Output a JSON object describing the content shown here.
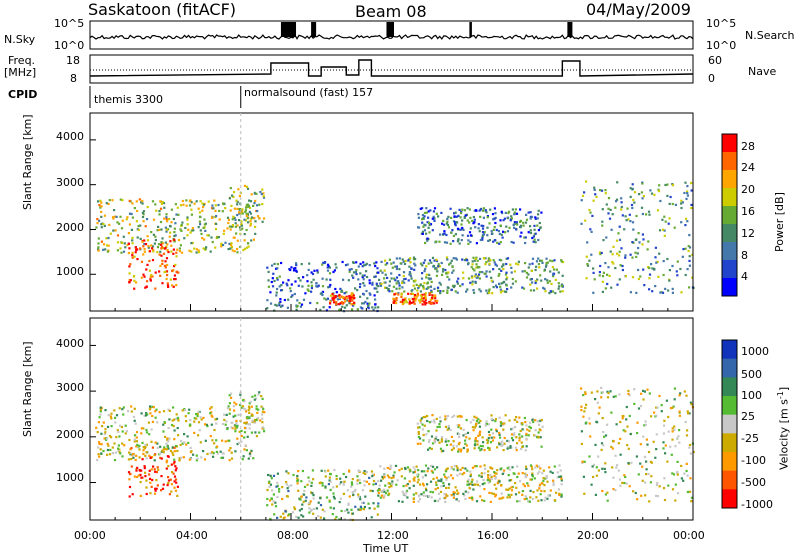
{
  "header": {
    "station": "Saskatoon (fitACF)",
    "beam": "Beam 08",
    "date": "04/May/2009"
  },
  "panels": {
    "nsky": {
      "left_label": "N.Sky",
      "right_label": "N.Search",
      "ticks_left": [
        "10^5",
        "10^0"
      ],
      "ticks_right": [
        "10^5",
        "10^0"
      ]
    },
    "freq": {
      "left_label_1": "Freq.",
      "left_label_2": "[MHz]",
      "ticks_left": [
        "18",
        "8"
      ],
      "ticks_right": [
        "60",
        "0"
      ],
      "right_label": "Nave"
    },
    "cpid": {
      "label": "CPID",
      "segments": [
        {
          "name": "themis 3300",
          "start_hour": 0
        },
        {
          "name": "normalsound (fast) 157",
          "start_hour": 6
        }
      ]
    }
  },
  "chart_data": [
    {
      "type": "heatmap",
      "quantity": "Power",
      "ylabel": "Slant Range [km]",
      "ylim": [
        180,
        4600
      ],
      "yticks": [
        "1000",
        "2000",
        "3000",
        "4000"
      ],
      "xlim_hours": [
        0,
        24
      ],
      "colorbar_label": "Power [dB]",
      "colorbar_ticks": [
        "28",
        "24",
        "20",
        "16",
        "12",
        "8",
        "4"
      ],
      "colorbar_colors": [
        "#ff0000",
        "#ff6600",
        "#ffa500",
        "#cccc00",
        "#66aa33",
        "#448866",
        "#4477aa",
        "#2244cc",
        "#0000ff"
      ],
      "regions": [
        {
          "t0": 0.2,
          "t1": 6.6,
          "r0": 1500,
          "r1": 2700,
          "level": 0.55
        },
        {
          "t0": 1.5,
          "t1": 3.5,
          "r0": 700,
          "r1": 1800,
          "level": 0.85
        },
        {
          "t0": 5.5,
          "t1": 6.9,
          "r0": 2000,
          "r1": 3000,
          "level": 0.5
        },
        {
          "t0": 7.0,
          "t1": 11.5,
          "r0": 200,
          "r1": 1300,
          "level": 0.25
        },
        {
          "t0": 9.5,
          "t1": 10.5,
          "r0": 350,
          "r1": 600,
          "level": 0.85
        },
        {
          "t0": 11.5,
          "t1": 18.8,
          "r0": 600,
          "r1": 1400,
          "level": 0.4
        },
        {
          "t0": 12.0,
          "t1": 13.8,
          "r0": 350,
          "r1": 600,
          "level": 0.85
        },
        {
          "t0": 13.0,
          "t1": 18.0,
          "r0": 1700,
          "r1": 2500,
          "level": 0.3
        },
        {
          "t0": 19.5,
          "t1": 24.0,
          "r0": 600,
          "r1": 3100,
          "level": 0.4
        }
      ]
    },
    {
      "type": "heatmap",
      "quantity": "Velocity",
      "ylabel": "Slant Range [km]",
      "ylim": [
        180,
        4600
      ],
      "yticks": [
        "1000",
        "2000",
        "3000",
        "4000"
      ],
      "xlabel": "Time UT",
      "xticks": [
        "00:00",
        "04:00",
        "08:00",
        "12:00",
        "16:00",
        "20:00",
        "00:00"
      ],
      "xlim_hours": [
        0,
        24
      ],
      "colorbar_label": "Velocity [m s^-1]",
      "colorbar_ticks": [
        "1000",
        "500",
        "100",
        "25",
        "-25",
        "-100",
        "-500",
        "-1000"
      ],
      "colorbar_colors": [
        "#1133bb",
        "#3366aa",
        "#338855",
        "#55bb33",
        "#c8c8c8",
        "#ccaa00",
        "#ff9900",
        "#ff5500",
        "#ff0000"
      ],
      "regions": [
        {
          "t0": 0.2,
          "t1": 6.6,
          "r0": 1500,
          "r1": 2700,
          "level": 0.5
        },
        {
          "t0": 1.5,
          "t1": 3.5,
          "r0": 700,
          "r1": 1800,
          "level": 0.2
        },
        {
          "t0": 5.5,
          "t1": 6.9,
          "r0": 2000,
          "r1": 3000,
          "level": 0.5
        },
        {
          "t0": 7.0,
          "t1": 11.5,
          "r0": 200,
          "r1": 1300,
          "level": 0.55
        },
        {
          "t0": 11.5,
          "t1": 18.8,
          "r0": 600,
          "r1": 1400,
          "level": 0.5
        },
        {
          "t0": 13.0,
          "t1": 18.0,
          "r0": 1700,
          "r1": 2500,
          "level": 0.5
        },
        {
          "t0": 19.5,
          "t1": 24.0,
          "r0": 600,
          "r1": 3100,
          "level": 0.5
        }
      ]
    }
  ]
}
